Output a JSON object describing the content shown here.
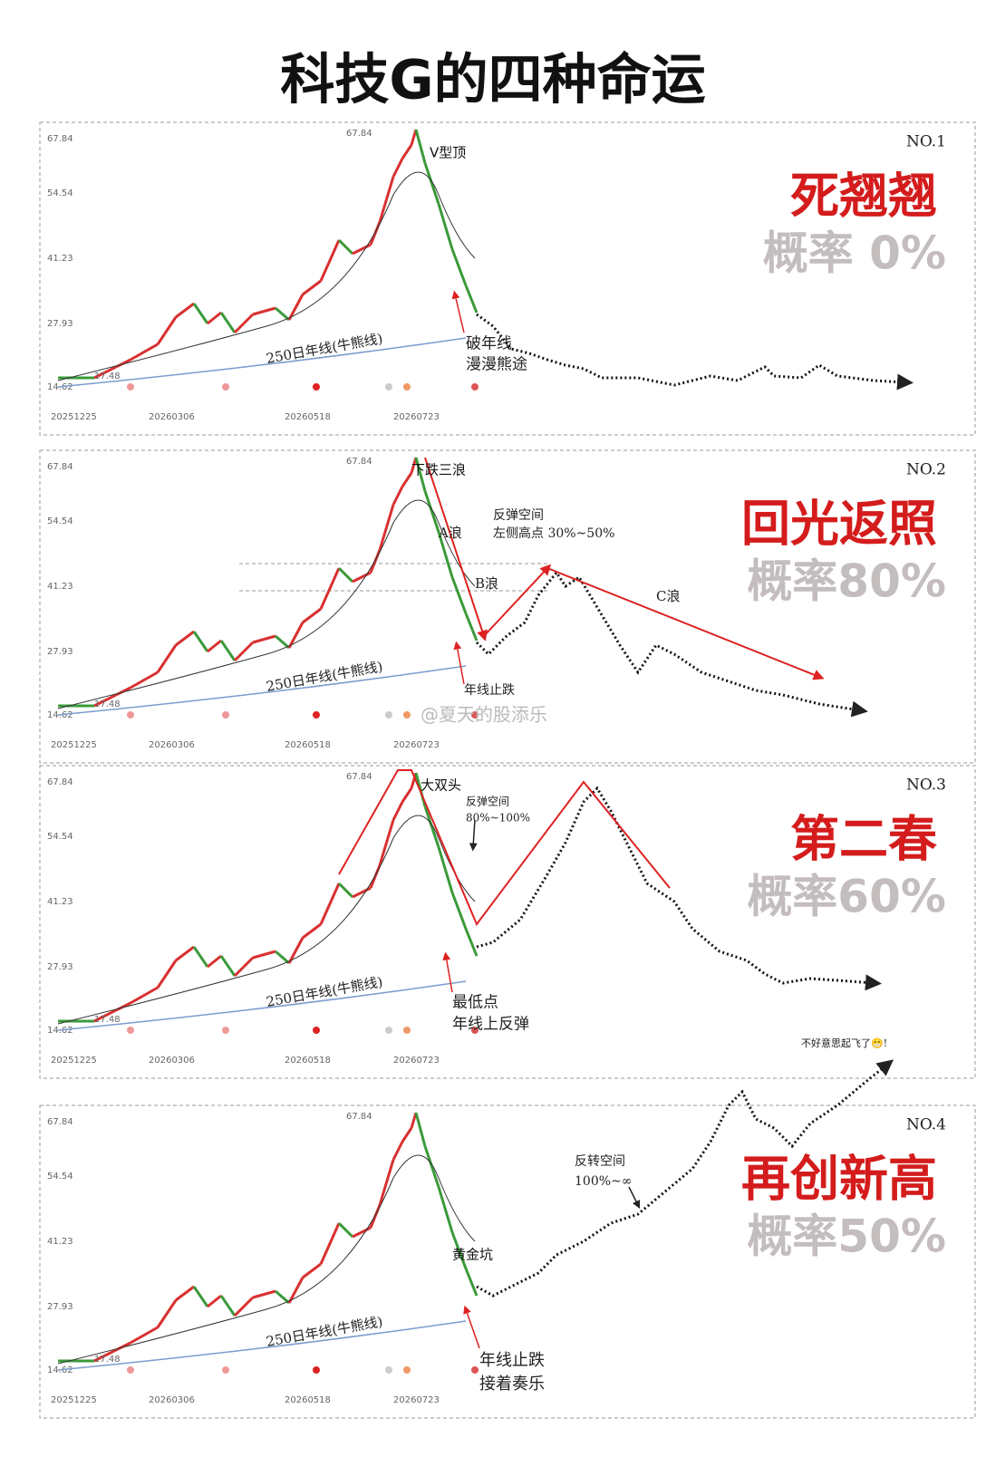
{
  "title": "科技G的四种命运",
  "axis": {
    "yticks": [
      "67.84",
      "54.54",
      "41.23",
      "27.93",
      "14.62"
    ],
    "xticks": [
      "20251225",
      "20260306",
      "20260518",
      "20260723"
    ],
    "peak_label": "67.84",
    "low_label": "17.48",
    "ma250_label": "250日年线(牛熊线)"
  },
  "watermark": "@夏天的股添乐",
  "panels": [
    {
      "number": "NO.1",
      "pattern": "V型顶",
      "fate": "死翘翘",
      "probability": "概率 0%",
      "notes": [
        "破年线",
        "漫漫熊途"
      ]
    },
    {
      "number": "NO.2",
      "pattern": "下跌三浪",
      "fate": "回光返照",
      "probability": "概率80%",
      "notes": [
        "反弹空间",
        "左侧高点 30%~50%",
        "A浪",
        "B浪",
        "C浪",
        "年线止跌"
      ]
    },
    {
      "number": "NO.3",
      "pattern": "大双头",
      "fate": "第二春",
      "probability": "概率60%",
      "notes": [
        "反弹空间",
        "80%~100%",
        "最低点",
        "年线上反弹"
      ]
    },
    {
      "number": "NO.4",
      "pattern": "黄金坑",
      "fate": "再创新高",
      "probability": "概率50%",
      "notes": [
        "反转空间",
        "100%~∞",
        "年线止跌",
        "接着奏乐",
        "不好意思起飞了😁!"
      ]
    }
  ]
}
